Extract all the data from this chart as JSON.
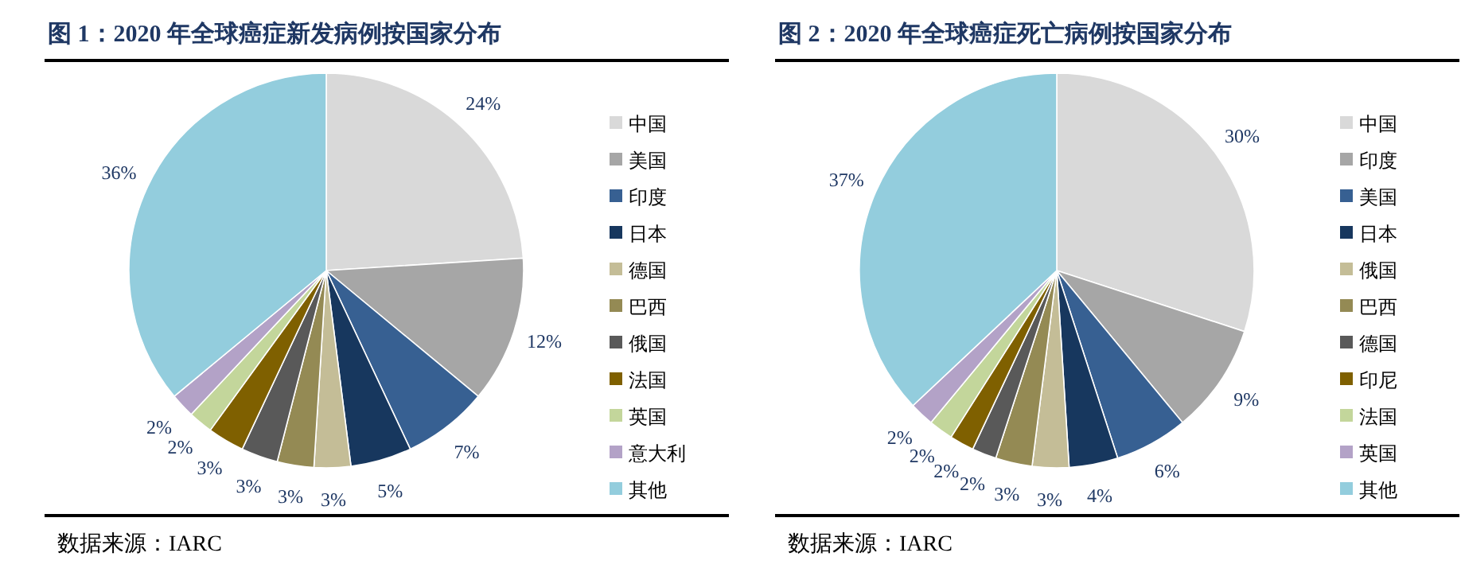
{
  "chart_data": [
    {
      "type": "pie",
      "title": "图 1：2020 年全球癌症新发病例按国家分布",
      "categories": [
        "中国",
        "美国",
        "印度",
        "日本",
        "德国",
        "巴西",
        "俄国",
        "法国",
        "英国",
        "意大利",
        "其他"
      ],
      "values": [
        24,
        12,
        7,
        5,
        3,
        3,
        3,
        3,
        2,
        2,
        36
      ],
      "value_labels": [
        "24%",
        "12%",
        "7%",
        "5%",
        "3%",
        "3%",
        "3%",
        "3%",
        "2%",
        "2%",
        "36%"
      ],
      "colors": [
        "#d9d9d9",
        "#a6a6a6",
        "#376092",
        "#17375e",
        "#c4bd97",
        "#948a54",
        "#595959",
        "#7f6000",
        "#c3d69b",
        "#b3a2c7",
        "#93cddd"
      ],
      "legend": "right",
      "annotations": [
        "数据来源：IARC"
      ]
    },
    {
      "type": "pie",
      "title": "图 2：2020 年全球癌症死亡病例按国家分布",
      "categories": [
        "中国",
        "印度",
        "美国",
        "日本",
        "俄国",
        "巴西",
        "德国",
        "印尼",
        "法国",
        "英国",
        "其他"
      ],
      "values": [
        30,
        9,
        6,
        4,
        3,
        3,
        2,
        2,
        2,
        2,
        37
      ],
      "value_labels": [
        "30%",
        "9%",
        "6%",
        "4%",
        "3%",
        "3%",
        "2%",
        "2%",
        "2%",
        "2%",
        "37%"
      ],
      "colors": [
        "#d9d9d9",
        "#a6a6a6",
        "#376092",
        "#17375e",
        "#c4bd97",
        "#948a54",
        "#595959",
        "#7f6000",
        "#c3d69b",
        "#b3a2c7",
        "#93cddd"
      ],
      "legend": "right",
      "annotations": [
        "数据来源：IARC"
      ]
    }
  ]
}
